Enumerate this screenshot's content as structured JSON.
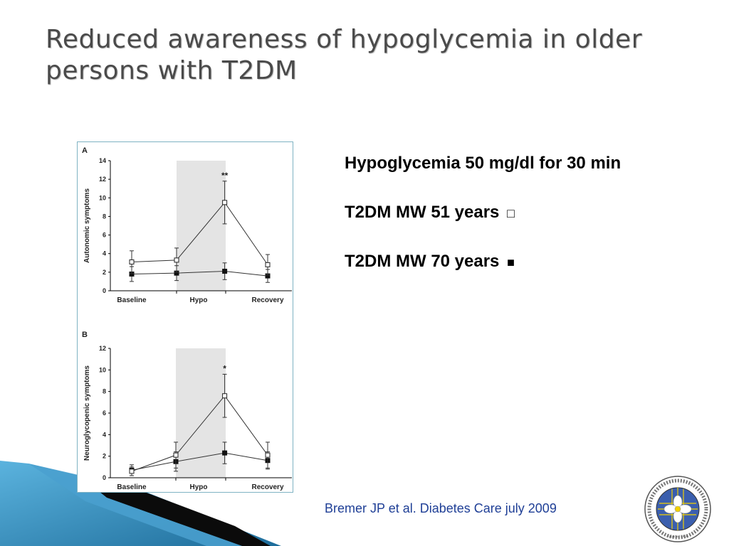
{
  "slide": {
    "title": "Reduced awareness of hypoglycemia in older persons with T2DM",
    "info": {
      "line1": "Hypoglycemia 50 mg/dl for 30 min",
      "line2_text": "T2DM MW 51 years",
      "line2_symbol": "□",
      "line3_text": "T2DM MW 70 years",
      "line3_symbol": "■"
    },
    "citation": "Bremer JP et al. Diabetes Care july 2009",
    "logo": {
      "icon": "society-seal-icon",
      "founded_text": "Founded 1950"
    },
    "colors": {
      "title": "#4a4a4a",
      "citation": "#1f3f96",
      "figure_border": "#7fb3c3",
      "hypo_shading": "#e4e4e4",
      "deco_blue": "#2f86b5"
    }
  },
  "chart_data": [
    {
      "type": "line",
      "panel": "A",
      "ylabel": "Autonomic symptoms",
      "categories": [
        "Baseline",
        "Hypo",
        "Recovery"
      ],
      "x": [
        0,
        1,
        1.98,
        3
      ],
      "ylim": [
        0,
        14
      ],
      "yticks": [
        0,
        2,
        4,
        6,
        8,
        10,
        12,
        14
      ],
      "shaded_region": "Hypo",
      "annotation": "**",
      "series": [
        {
          "marker": "open-square",
          "values": [
            3.1,
            3.3,
            9.5,
            2.8
          ],
          "errors": [
            1.2,
            1.3,
            2.3,
            1.1
          ]
        },
        {
          "marker": "filled-square",
          "values": [
            1.8,
            1.9,
            2.1,
            1.6
          ],
          "errors": [
            0.8,
            0.8,
            0.9,
            0.7
          ]
        }
      ]
    },
    {
      "type": "line",
      "panel": "B",
      "ylabel": "Neuroglycopenic symptoms",
      "categories": [
        "Baseline",
        "Hypo",
        "Recovery"
      ],
      "x": [
        0,
        1,
        1.98,
        3
      ],
      "ylim": [
        0,
        12
      ],
      "yticks": [
        0,
        2,
        4,
        6,
        8,
        10,
        12
      ],
      "shaded_region": "Hypo",
      "annotation": "*",
      "series": [
        {
          "marker": "open-square",
          "values": [
            0.6,
            2.1,
            7.6,
            2.1
          ],
          "errors": [
            0.4,
            1.2,
            2.0,
            1.2
          ]
        },
        {
          "marker": "filled-square",
          "values": [
            0.7,
            1.5,
            2.3,
            1.6
          ],
          "errors": [
            0.5,
            0.9,
            1.0,
            0.8
          ]
        }
      ]
    }
  ]
}
